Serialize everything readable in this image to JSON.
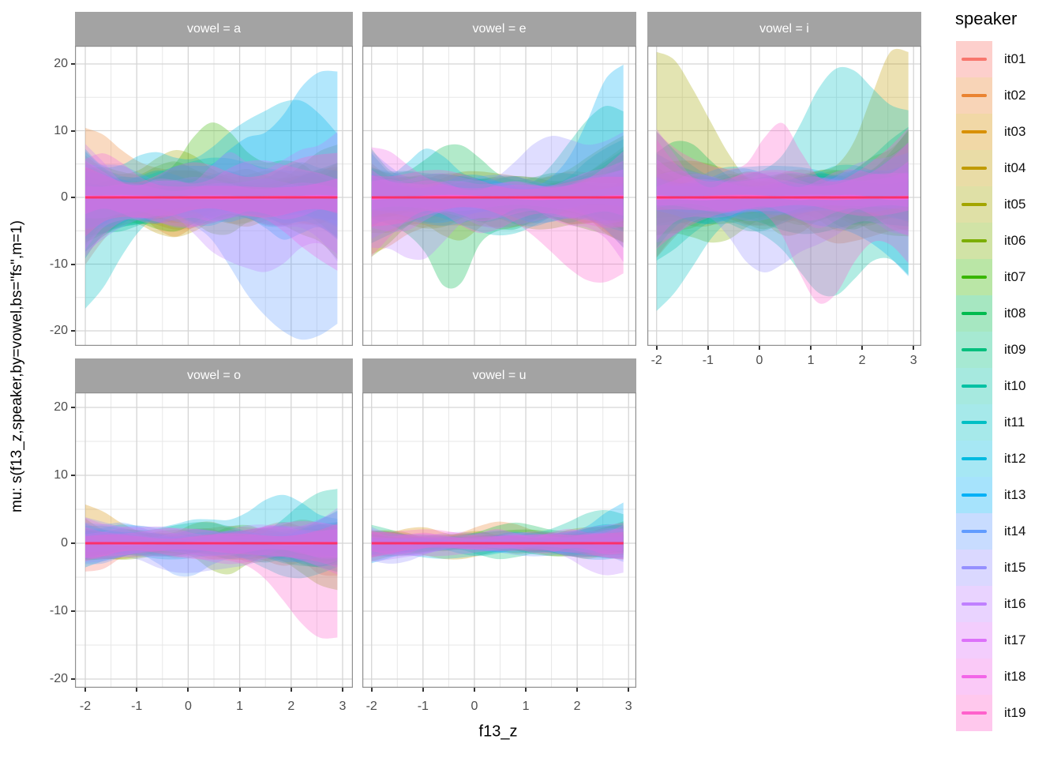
{
  "chart_data": {
    "type": "area",
    "title": "",
    "xlabel": "f13_z",
    "ylabel": "mu: s(f13_z,speaker,by=vowel,bs=\"fs\",m=1)",
    "legend_title": "speaker",
    "legend_position": "right",
    "x_ticks": [
      -2,
      -1,
      0,
      1,
      2,
      3
    ],
    "y_ticks": [
      20,
      10,
      0,
      -10,
      -20
    ],
    "xlim": [
      -2.2,
      3.2
    ],
    "ylim": [
      -22.5,
      22.5
    ],
    "x_data_range": [
      -2.0,
      2.9
    ],
    "grid": {
      "major": true,
      "minor": true
    },
    "ribbon_alpha": 0.3,
    "zero_line_color": "#FA2D5F",
    "speakers": [
      {
        "name": "it01",
        "color": "#F8766D"
      },
      {
        "name": "it02",
        "color": "#EA8331"
      },
      {
        "name": "it03",
        "color": "#D89000"
      },
      {
        "name": "it04",
        "color": "#C09B00"
      },
      {
        "name": "it05",
        "color": "#A3A500"
      },
      {
        "name": "it06",
        "color": "#7CAE00"
      },
      {
        "name": "it07",
        "color": "#39B600"
      },
      {
        "name": "it08",
        "color": "#00BB4E"
      },
      {
        "name": "it09",
        "color": "#00BF7D"
      },
      {
        "name": "it10",
        "color": "#00C1A3"
      },
      {
        "name": "it11",
        "color": "#00BFC4"
      },
      {
        "name": "it12",
        "color": "#00BAE0"
      },
      {
        "name": "it13",
        "color": "#00B0F6"
      },
      {
        "name": "it14",
        "color": "#619CFF"
      },
      {
        "name": "it15",
        "color": "#9590FF"
      },
      {
        "name": "it16",
        "color": "#BF80FF"
      },
      {
        "name": "it17",
        "color": "#DC71FA"
      },
      {
        "name": "it18",
        "color": "#F265E8"
      },
      {
        "name": "it19",
        "color": "#FF61CC"
      }
    ],
    "facets": [
      {
        "label": "vowel = a",
        "vowel": "a",
        "row": 0,
        "col": 0,
        "seed": 101,
        "spread": 1.0,
        "edge": 0.9,
        "waist": 0.0,
        "envelope_x": [
          -2,
          -1,
          0,
          1,
          2,
          3
        ],
        "envelope_upper": [
          11,
          7,
          10,
          10,
          15,
          17
        ],
        "envelope_lower": [
          -13,
          -7,
          -6,
          -12,
          -20,
          -17
        ],
        "features": [
          {
            "s": 13,
            "side": "up",
            "pos": 2.6,
            "amp": 14,
            "w": 0.9
          },
          {
            "s": 12,
            "side": "up",
            "pos": 1.8,
            "amp": 11,
            "w": 0.7
          },
          {
            "s": 7,
            "side": "up",
            "pos": 0.6,
            "amp": 8,
            "w": 0.6
          },
          {
            "s": 2,
            "side": "up",
            "pos": -2.0,
            "amp": 7,
            "w": 0.5
          },
          {
            "s": 18,
            "side": "up",
            "pos": -1.7,
            "amp": 5,
            "w": 0.5
          },
          {
            "s": 14,
            "side": "lo",
            "pos": 1.9,
            "amp": 17,
            "w": 0.9
          },
          {
            "s": 16,
            "side": "lo",
            "pos": 1.2,
            "amp": 9,
            "w": 0.8
          },
          {
            "s": 11,
            "side": "lo",
            "pos": -2.0,
            "amp": 8,
            "w": 0.55
          }
        ]
      },
      {
        "label": "vowel = e",
        "vowel": "e",
        "row": 0,
        "col": 1,
        "seed": 202,
        "spread": 0.95,
        "edge": 0.8,
        "waist": 0.0,
        "envelope_x": [
          -2,
          -1,
          0,
          1,
          2,
          3
        ],
        "envelope_upper": [
          8,
          7,
          8,
          9,
          13,
          18
        ],
        "envelope_lower": [
          -9,
          -10,
          -14,
          -9,
          -13,
          -14
        ],
        "features": [
          {
            "s": 13,
            "side": "up",
            "pos": 2.8,
            "amp": 15,
            "w": 0.5
          },
          {
            "s": 10,
            "side": "up",
            "pos": 2.6,
            "amp": 12,
            "w": 0.6
          },
          {
            "s": 12,
            "side": "up",
            "pos": -0.9,
            "amp": 6,
            "w": 0.4
          },
          {
            "s": 18,
            "side": "up",
            "pos": -1.9,
            "amp": 5,
            "w": 0.5
          },
          {
            "s": 15,
            "side": "up",
            "pos": 1.6,
            "amp": 6,
            "w": 0.6
          },
          {
            "s": 8,
            "side": "lo",
            "pos": -0.4,
            "amp": 11,
            "w": 0.35
          },
          {
            "s": 16,
            "side": "lo",
            "pos": -1.2,
            "amp": 6,
            "w": 0.5
          },
          {
            "s": 19,
            "side": "lo",
            "pos": 2.5,
            "amp": 11,
            "w": 0.8
          }
        ]
      },
      {
        "label": "vowel = i",
        "vowel": "i",
        "row": 0,
        "col": 2,
        "seed": 303,
        "spread": 1.05,
        "edge": 1.0,
        "waist": 0.0,
        "envelope_x": [
          -2,
          -1,
          0,
          1,
          2,
          3
        ],
        "envelope_upper": [
          20,
          8,
          13,
          10,
          20,
          17
        ],
        "envelope_lower": [
          -12,
          -10,
          -8,
          -14,
          -17,
          -12
        ],
        "features": [
          {
            "s": 5,
            "side": "up",
            "pos": -1.9,
            "amp": 17,
            "w": 0.75
          },
          {
            "s": 11,
            "side": "up",
            "pos": 1.6,
            "amp": 17,
            "w": 0.7
          },
          {
            "s": 4,
            "side": "up",
            "pos": 2.8,
            "amp": 13,
            "w": 0.6
          },
          {
            "s": 19,
            "side": "up",
            "pos": 0.4,
            "amp": 9,
            "w": 0.35
          },
          {
            "s": 8,
            "side": "up",
            "pos": -1.5,
            "amp": 6,
            "w": 0.5
          },
          {
            "s": 11,
            "side": "lo",
            "pos": -1.8,
            "amp": 10,
            "w": 0.7
          },
          {
            "s": 10,
            "side": "lo",
            "pos": 1.4,
            "amp": 13,
            "w": 0.6
          },
          {
            "s": 19,
            "side": "lo",
            "pos": 1.2,
            "amp": 12,
            "w": 0.5
          },
          {
            "s": 15,
            "side": "lo",
            "pos": 0.3,
            "amp": 8,
            "w": 0.6
          }
        ]
      },
      {
        "label": "vowel = o",
        "vowel": "o",
        "row": 1,
        "col": 0,
        "seed": 404,
        "spread": 0.75,
        "edge": 0.35,
        "waist": 0.25,
        "envelope_x": [
          -2,
          -1,
          0,
          1,
          2,
          3
        ],
        "envelope_upper": [
          7,
          4,
          4,
          5,
          5,
          7
        ],
        "envelope_lower": [
          -6,
          -6,
          -5,
          -7,
          -10,
          -12
        ],
        "features": [
          {
            "s": 3,
            "side": "up",
            "pos": -2.0,
            "amp": 4.5,
            "w": 0.5
          },
          {
            "s": 10,
            "side": "up",
            "pos": 2.8,
            "amp": 5,
            "w": 0.6
          },
          {
            "s": 12,
            "side": "up",
            "pos": 1.5,
            "amp": 3,
            "w": 0.5
          },
          {
            "s": 19,
            "side": "lo",
            "pos": 2.6,
            "amp": 10,
            "w": 0.8
          },
          {
            "s": 14,
            "side": "lo",
            "pos": 0.0,
            "amp": 3.5,
            "w": 0.5
          }
        ]
      },
      {
        "label": "vowel = u",
        "vowel": "u",
        "row": 1,
        "col": 1,
        "seed": 505,
        "spread": 0.5,
        "edge": 0.2,
        "waist": 0.45,
        "envelope_x": [
          -2,
          -1,
          0,
          1,
          2,
          3
        ],
        "envelope_upper": [
          3,
          2,
          2,
          2,
          3,
          6
        ],
        "envelope_lower": [
          -3,
          -2,
          -2,
          -3,
          -4,
          -5
        ],
        "features": [
          {
            "s": 13,
            "side": "up",
            "pos": 2.9,
            "amp": 4,
            "w": 0.5
          },
          {
            "s": 10,
            "side": "up",
            "pos": 2.5,
            "amp": 3,
            "w": 0.5
          },
          {
            "s": 16,
            "side": "lo",
            "pos": 2.7,
            "amp": 3.5,
            "w": 0.6
          }
        ]
      },
      {
        "label": "",
        "vowel": "",
        "row": -1,
        "col": -1,
        "seed": 0,
        "spread": 0,
        "edge": 0,
        "waist": 0,
        "envelope_x": [],
        "envelope_upper": [],
        "envelope_lower": [],
        "features": []
      }
    ],
    "theme": {
      "background": "#FFFFFF",
      "strip_bg": "#A3A3A3",
      "strip_text": "#FFFFFF",
      "panel_border": "#8F8F8F",
      "grid_major": "#D5D5D5",
      "grid_minor": "#E7E7E7",
      "tick_color": "#333333",
      "tick_label_color": "#4D4D4D",
      "axis_title_color": "#000000"
    }
  }
}
